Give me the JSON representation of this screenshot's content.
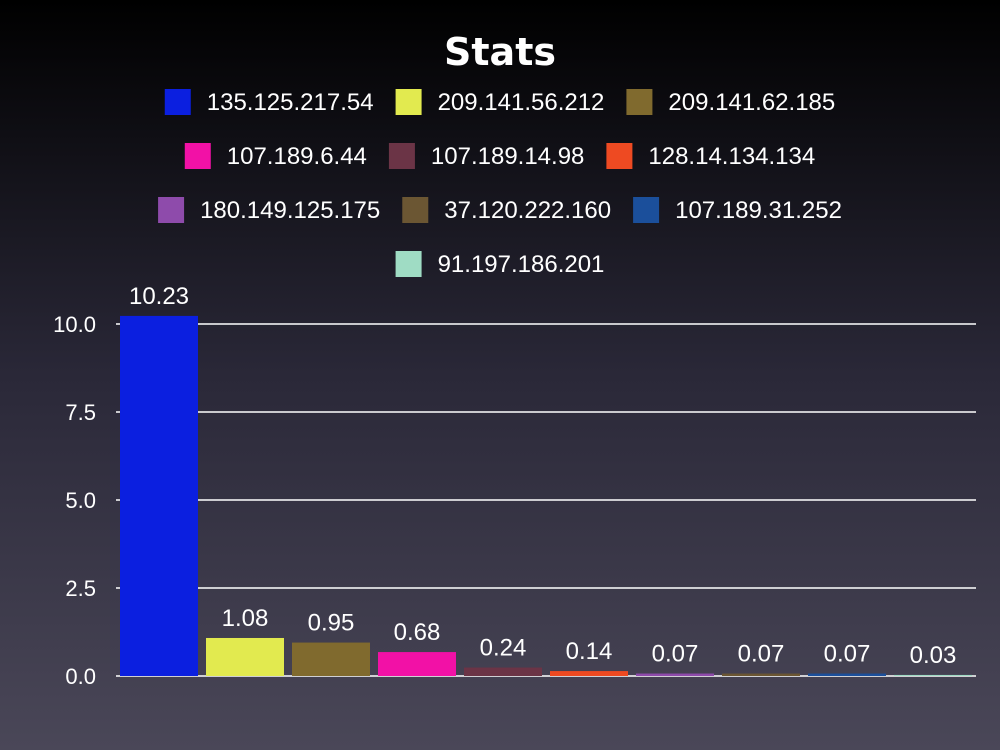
{
  "chart_data": {
    "type": "bar",
    "title": "Stats",
    "xlabel": "",
    "ylabel": "",
    "ylim": [
      0,
      10.23
    ],
    "yticks": [
      "0.0",
      "2.5",
      "5.0",
      "7.5",
      "10.0"
    ],
    "grid": true,
    "legend_position": "top",
    "categories": [
      "135.125.217.54",
      "209.141.56.212",
      "209.141.62.185",
      "107.189.6.44",
      "107.189.14.98",
      "128.14.134.134",
      "180.149.125.175",
      "37.120.222.160",
      "107.189.31.252",
      "91.197.186.201"
    ],
    "values": [
      10.23,
      1.08,
      0.95,
      0.68,
      0.24,
      0.14,
      0.07,
      0.07,
      0.07,
      0.03
    ],
    "value_labels": [
      "10.23",
      "1.08",
      "0.95",
      "0.68",
      "0.24",
      "0.14",
      "0.07",
      "0.07",
      "0.07",
      "0.03"
    ],
    "colors": [
      "#0b1fe0",
      "#e2ea4f",
      "#806a2e",
      "#f211a6",
      "#6b3446",
      "#ee4a22",
      "#8e4bab",
      "#6b5633",
      "#1b4f9b",
      "#9fdcc4"
    ]
  }
}
